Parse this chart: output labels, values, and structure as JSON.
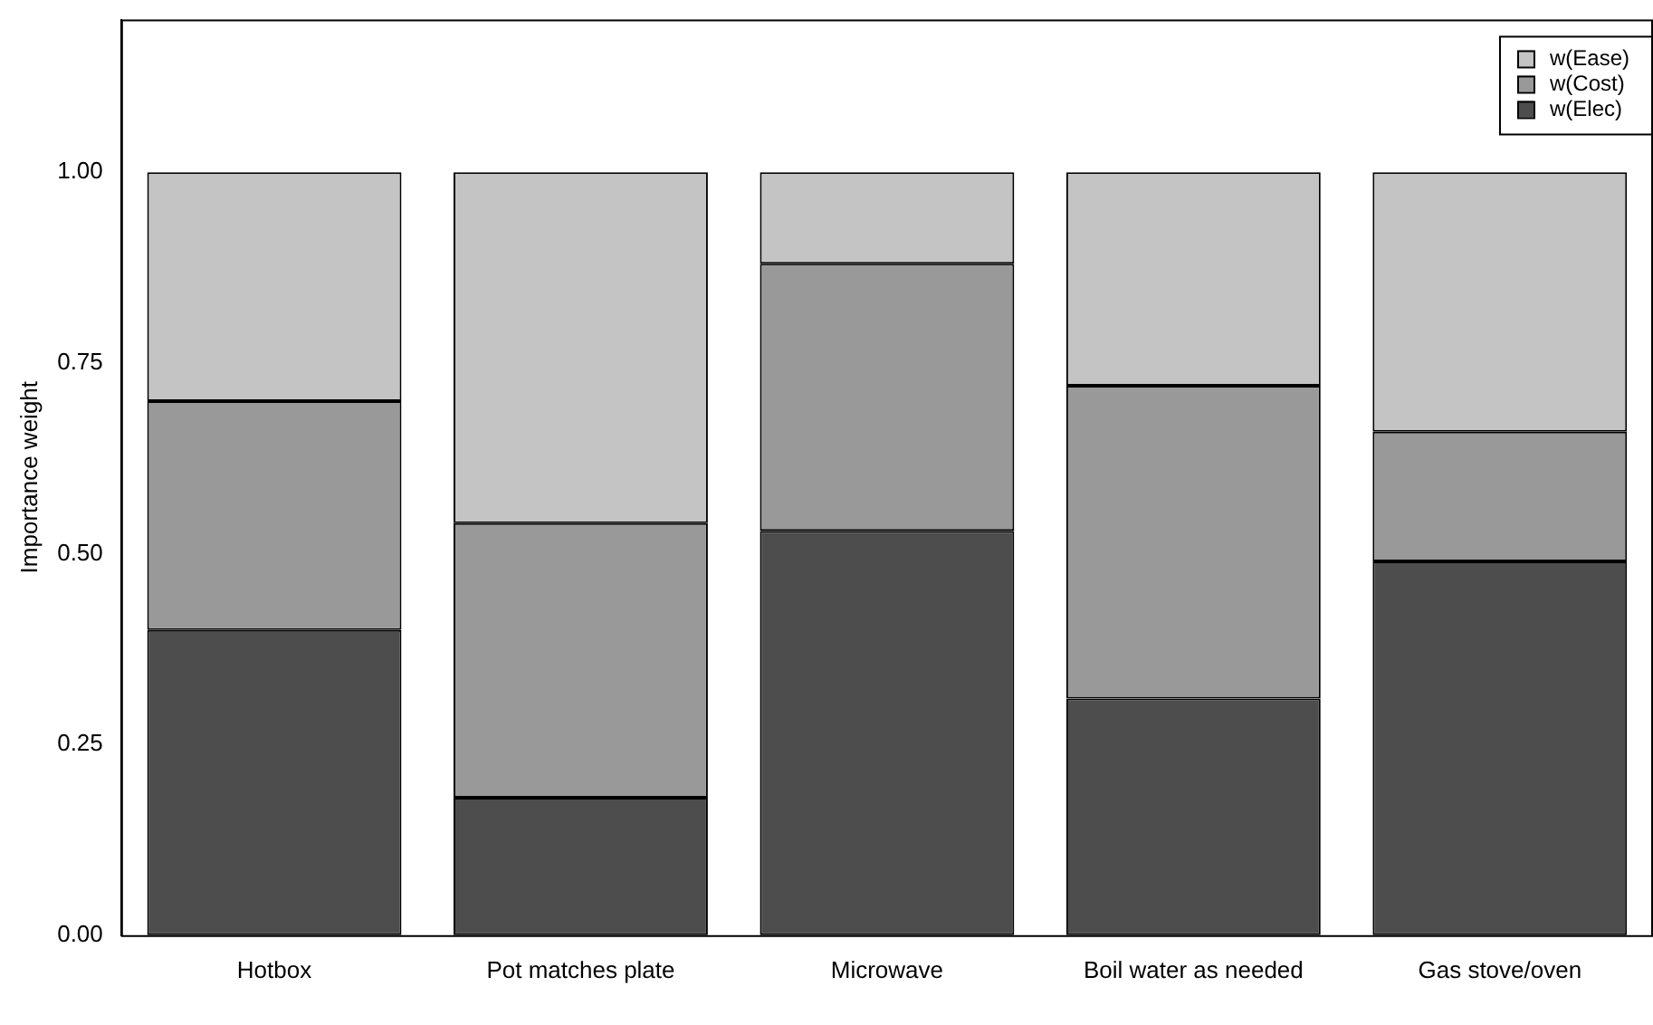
{
  "chart_data": {
    "type": "bar",
    "stacked": true,
    "ylabel": "Importance weight",
    "categories": [
      "Hotbox",
      "Pot matches plate",
      "Microwave",
      "Boil water as needed",
      "Gas stove/oven"
    ],
    "series": [
      {
        "name": "w(Elec)",
        "color": "#4d4d4d",
        "values": [
          0.4,
          0.18,
          0.53,
          0.31,
          0.49
        ]
      },
      {
        "name": "w(Cost)",
        "color": "#999999",
        "values": [
          0.3,
          0.36,
          0.35,
          0.41,
          0.17
        ]
      },
      {
        "name": "w(Ease)",
        "color": "#c4c4c4",
        "values": [
          0.3,
          0.46,
          0.12,
          0.28,
          0.34
        ]
      }
    ],
    "ylim": [
      0,
      1.2
    ],
    "yticks": [
      {
        "value": 0,
        "label": "0.00"
      },
      {
        "value": 0.25,
        "label": "0.25"
      },
      {
        "value": 0.5,
        "label": "0.50"
      },
      {
        "value": 0.75,
        "label": "0.75"
      },
      {
        "value": 1,
        "label": "1.00"
      }
    ],
    "grid": false,
    "legend": "top right"
  }
}
